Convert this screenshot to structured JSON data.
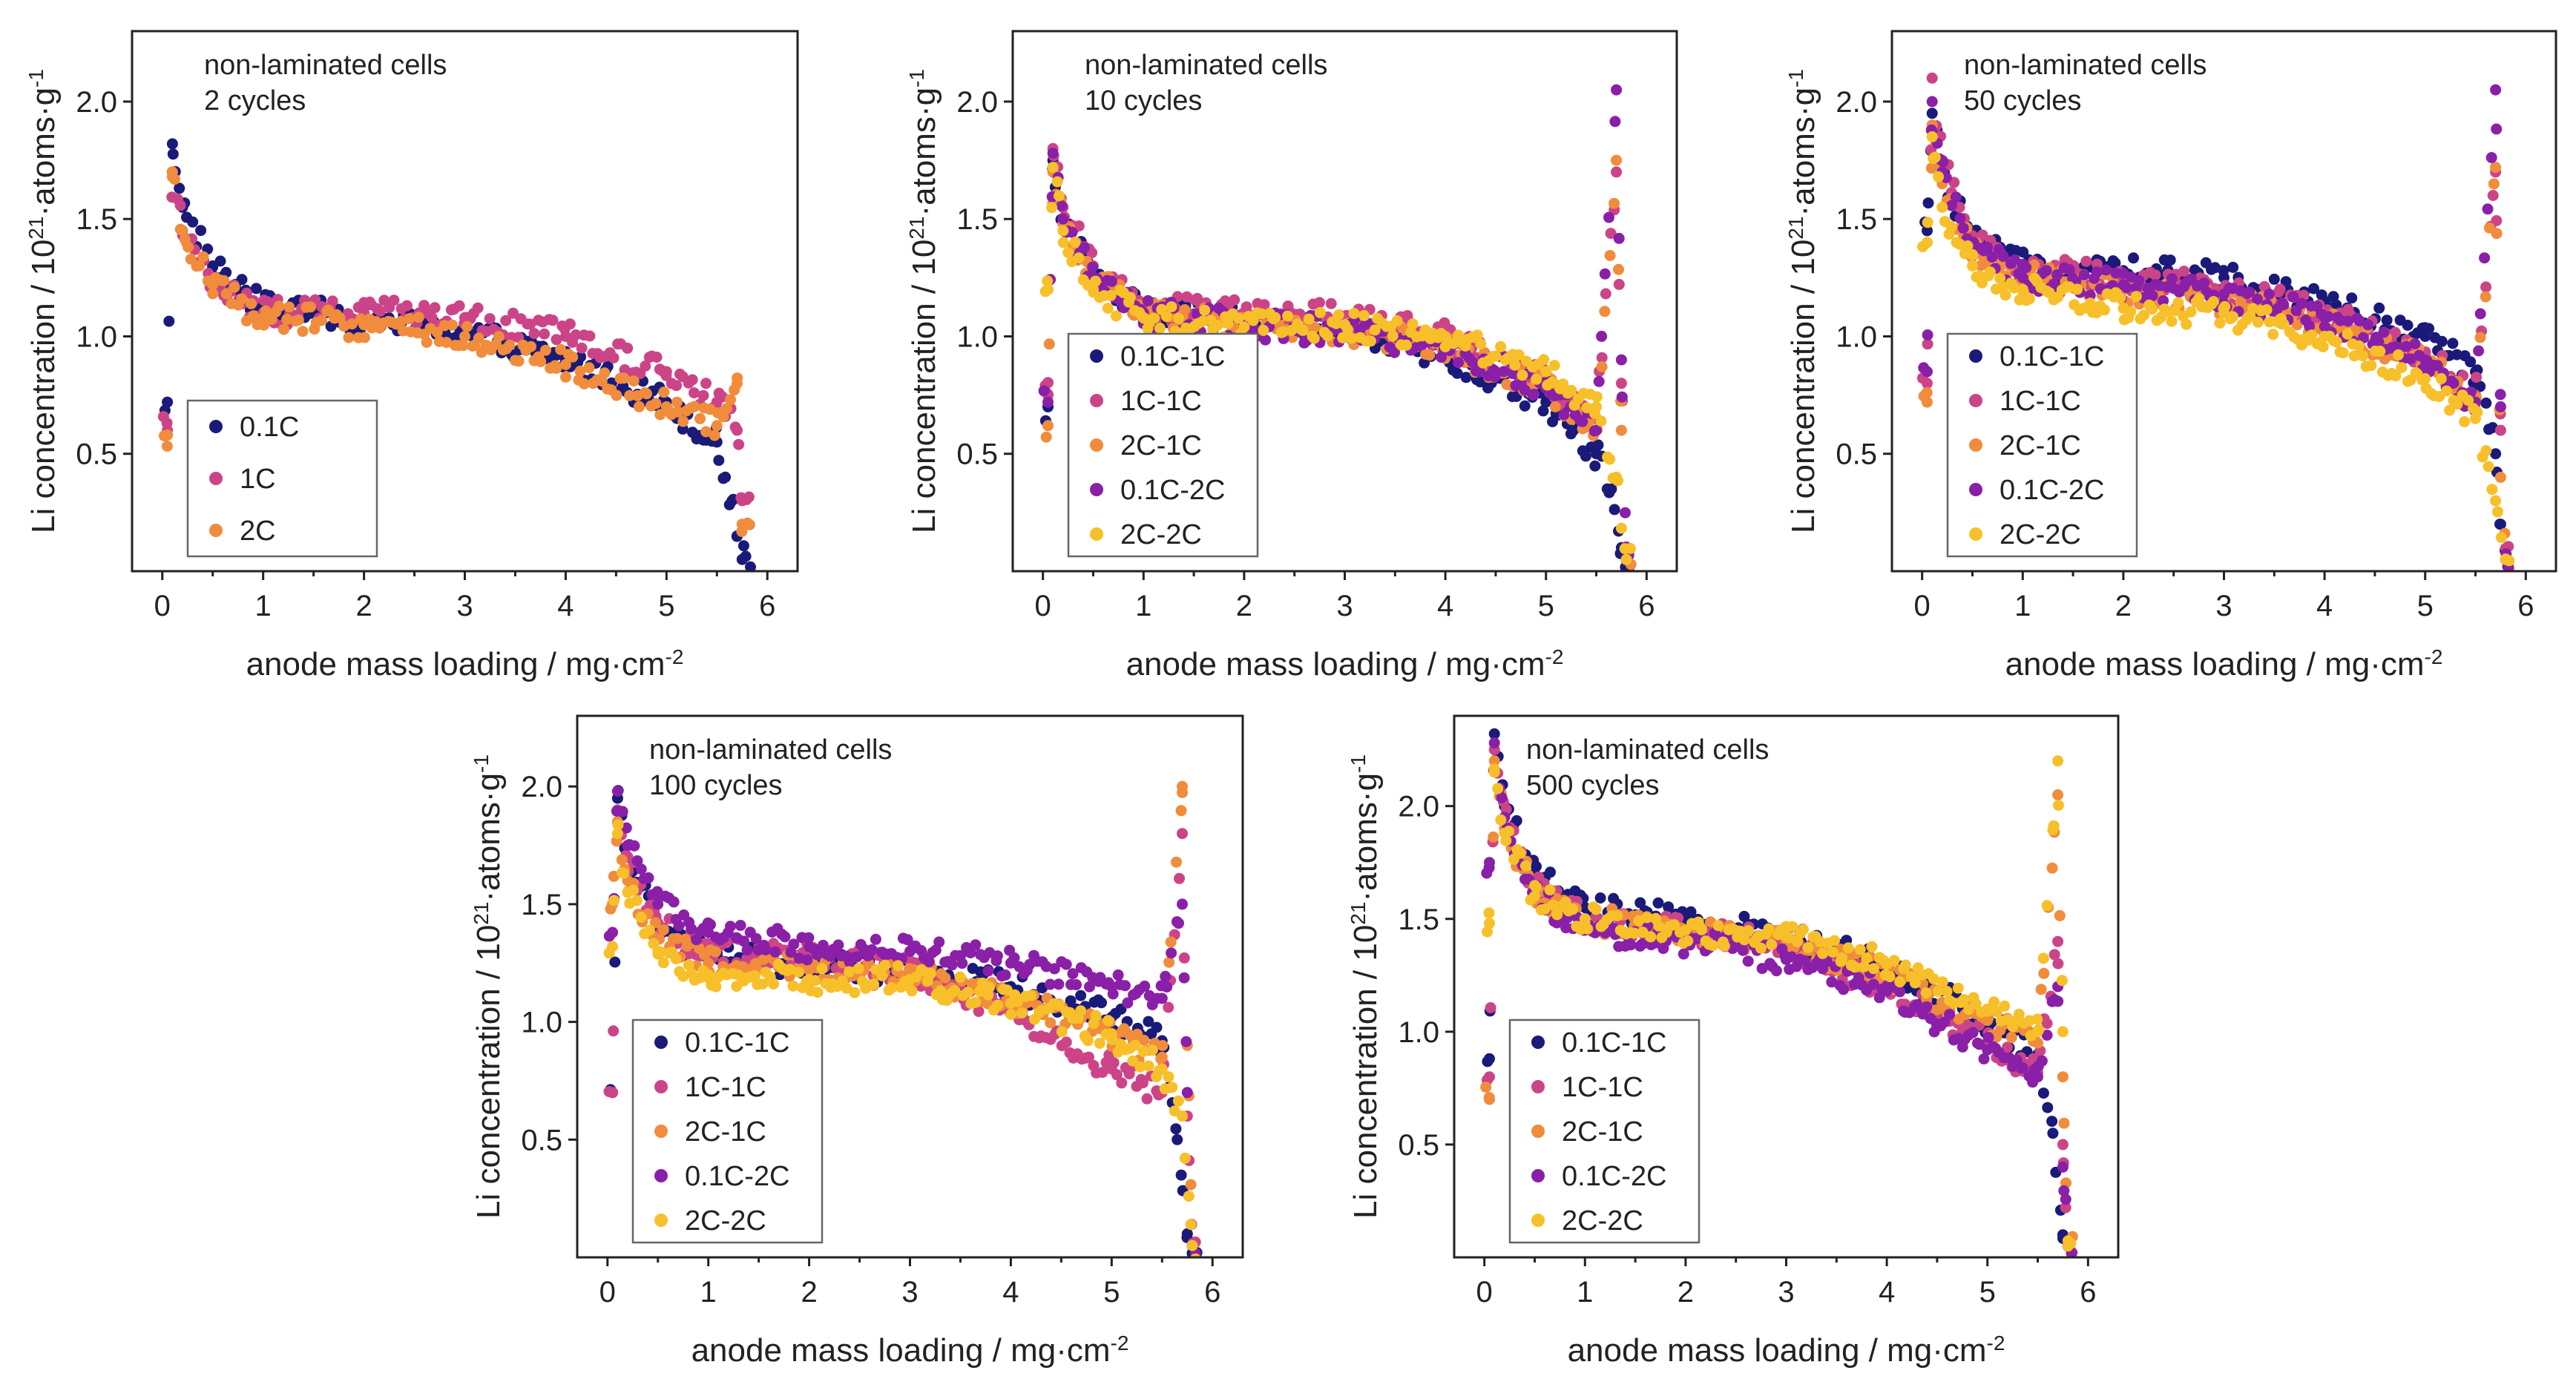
{
  "chart_data": [
    {
      "type": "scatter",
      "annotation": [
        "non-laminated cells",
        "2 cycles"
      ],
      "xlabel": "anode mass loading / mg·cm",
      "xlabel_sup": "-2",
      "ylabel": "Li concentration / 10",
      "ylabel_sup": "21",
      "ylabel_tail": "·atoms·g",
      "ylabel_sup2": "-1",
      "xlim": [
        -0.3,
        6.3
      ],
      "ylim": [
        0,
        2.3
      ],
      "xticks": [
        "0",
        "1",
        "2",
        "3",
        "4",
        "5",
        "6"
      ],
      "yticks": [
        "0.5",
        "1.0",
        "1.5",
        "2.0"
      ],
      "legend": [
        {
          "name": "0.1C",
          "color": "#1a1a7a"
        },
        {
          "name": "1C",
          "color": "#cc4488"
        },
        {
          "name": "2C",
          "color": "#f08c3c"
        }
      ],
      "series_profile": [
        {
          "name": "0.1C",
          "x": [
            0.05,
            0.1,
            0.2,
            0.5,
            1,
            2,
            3,
            4,
            5,
            5.5,
            5.65,
            5.7,
            5.75
          ],
          "y": [
            0.72,
            1.82,
            1.55,
            1.3,
            1.12,
            1.08,
            1.02,
            0.9,
            0.72,
            0.55,
            0.3,
            0.15,
            0.05
          ]
        },
        {
          "name": "1C",
          "x": [
            0.05,
            0.1,
            0.2,
            0.5,
            1,
            2,
            3,
            4,
            5,
            5.5,
            5.7,
            5.75
          ],
          "y": [
            0.6,
            1.7,
            1.45,
            1.25,
            1.1,
            1.1,
            1.08,
            1.0,
            0.85,
            0.72,
            0.6,
            0.3
          ]
        },
        {
          "name": "2C",
          "x": [
            0.05,
            0.1,
            0.2,
            0.5,
            1,
            2,
            3,
            4,
            5,
            5.5,
            5.7,
            5.75
          ],
          "y": [
            0.58,
            1.68,
            1.45,
            1.22,
            1.08,
            1.05,
            1.0,
            0.88,
            0.7,
            0.62,
            0.8,
            0.2
          ]
        }
      ]
    },
    {
      "type": "scatter",
      "annotation": [
        "non-laminated cells",
        "10 cycles"
      ],
      "xlabel": "anode mass loading / mg·cm",
      "xlabel_sup": "-2",
      "ylabel": "Li concentration / 10",
      "ylabel_sup": "21",
      "ylabel_tail": "·atoms·g",
      "ylabel_sup2": "-1",
      "xlim": [
        -0.3,
        6.3
      ],
      "ylim": [
        0,
        2.3
      ],
      "xticks": [
        "0",
        "1",
        "2",
        "3",
        "4",
        "5",
        "6"
      ],
      "yticks": [
        "0.5",
        "1.0",
        "1.5",
        "2.0"
      ],
      "legend": [
        {
          "name": "0.1C-1C",
          "color": "#1a1a7a"
        },
        {
          "name": "1C-1C",
          "color": "#cc4488"
        },
        {
          "name": "2C-1C",
          "color": "#f08c3c"
        },
        {
          "name": "0.1C-2C",
          "color": "#8a1fa8"
        },
        {
          "name": "2C-2C",
          "color": "#f7c02a"
        }
      ],
      "series_profile": [
        {
          "name": "0.1C-1C",
          "x": [
            0.05,
            0.1,
            0.2,
            0.5,
            1,
            2,
            3,
            4,
            5,
            5.5,
            5.65,
            5.75,
            5.8
          ],
          "y": [
            0.7,
            1.75,
            1.5,
            1.25,
            1.1,
            1.07,
            1.02,
            0.92,
            0.72,
            0.5,
            0.35,
            0.1,
            0.05
          ]
        },
        {
          "name": "1C-1C",
          "x": [
            0.05,
            0.1,
            0.2,
            0.5,
            1,
            2,
            3,
            4,
            5,
            5.5,
            5.7,
            5.75,
            5.8
          ],
          "y": [
            0.75,
            1.8,
            1.55,
            1.3,
            1.12,
            1.1,
            1.08,
            1.0,
            0.8,
            0.65,
            1.7,
            0.8,
            0.1
          ]
        },
        {
          "name": "2C-1C",
          "x": [
            0.05,
            0.1,
            0.2,
            0.5,
            1,
            2,
            3,
            4,
            5,
            5.5,
            5.7,
            5.75,
            5.8
          ],
          "y": [
            0.62,
            1.7,
            1.48,
            1.25,
            1.1,
            1.06,
            1.02,
            0.95,
            0.78,
            0.6,
            1.75,
            0.6,
            0.05
          ]
        },
        {
          "name": "0.1C-2C",
          "x": [
            0.05,
            0.1,
            0.2,
            0.5,
            1,
            2,
            3,
            4,
            5,
            5.5,
            5.7,
            5.75,
            5.8
          ],
          "y": [
            0.72,
            1.78,
            1.5,
            1.25,
            1.1,
            1.05,
            1.02,
            0.95,
            0.78,
            0.6,
            2.05,
            0.9,
            0.1
          ]
        },
        {
          "name": "2C-2C",
          "x": [
            0.05,
            0.1,
            0.2,
            0.5,
            1,
            2,
            3,
            4,
            5,
            5.5,
            5.7,
            5.8
          ],
          "y": [
            1.2,
            1.72,
            1.45,
            1.2,
            1.08,
            1.04,
            1.05,
            1.0,
            0.85,
            0.7,
            0.4,
            0.05
          ]
        }
      ]
    },
    {
      "type": "scatter",
      "annotation": [
        "non-laminated cells",
        "50 cycles"
      ],
      "xlabel": "anode mass loading / mg·cm",
      "xlabel_sup": "-2",
      "ylabel": "Li concentration / 10",
      "ylabel_sup": "21",
      "ylabel_tail": "·atoms·g",
      "ylabel_sup2": "-1",
      "xlim": [
        -0.3,
        6.3
      ],
      "ylim": [
        0,
        2.3
      ],
      "xticks": [
        "0",
        "1",
        "2",
        "3",
        "4",
        "5",
        "6"
      ],
      "yticks": [
        "0.5",
        "1.0",
        "1.5",
        "2.0"
      ],
      "legend": [
        {
          "name": "0.1C-1C",
          "color": "#1a1a7a"
        },
        {
          "name": "1C-1C",
          "color": "#cc4488"
        },
        {
          "name": "2C-1C",
          "color": "#f08c3c"
        },
        {
          "name": "0.1C-2C",
          "color": "#8a1fa8"
        },
        {
          "name": "2C-2C",
          "color": "#f7c02a"
        }
      ],
      "series_profile": [
        {
          "name": "0.1C-1C",
          "x": [
            0.05,
            0.1,
            0.2,
            0.5,
            1,
            2,
            3,
            4,
            5,
            5.5,
            5.7,
            5.75,
            5.8
          ],
          "y": [
            1.45,
            1.95,
            1.7,
            1.4,
            1.3,
            1.28,
            1.25,
            1.15,
            1.0,
            0.85,
            0.5,
            0.2,
            0.05
          ]
        },
        {
          "name": "1C-1C",
          "x": [
            0.05,
            0.1,
            0.2,
            0.5,
            1,
            2,
            3,
            4,
            5,
            5.5,
            5.7,
            5.75,
            5.8
          ],
          "y": [
            0.8,
            2.1,
            1.75,
            1.4,
            1.28,
            1.25,
            1.2,
            1.1,
            0.92,
            0.75,
            1.7,
            0.6,
            0.05
          ]
        },
        {
          "name": "2C-1C",
          "x": [
            0.05,
            0.1,
            0.2,
            0.5,
            1,
            2,
            3,
            4,
            5,
            5.5,
            5.7,
            5.75,
            5.8
          ],
          "y": [
            0.72,
            1.9,
            1.65,
            1.35,
            1.25,
            1.2,
            1.15,
            1.05,
            0.9,
            0.72,
            1.72,
            0.4,
            0.05
          ]
        },
        {
          "name": "0.1C-2C",
          "x": [
            0.05,
            0.1,
            0.2,
            0.5,
            1,
            2,
            3,
            4,
            5,
            5.5,
            5.7,
            5.75,
            5.8
          ],
          "y": [
            0.85,
            2.0,
            1.7,
            1.38,
            1.25,
            1.22,
            1.18,
            1.08,
            0.9,
            0.72,
            2.05,
            0.7,
            0.05
          ]
        },
        {
          "name": "2C-2C",
          "x": [
            0.05,
            0.1,
            0.2,
            0.5,
            1,
            2,
            3,
            4,
            5,
            5.5,
            5.7,
            5.8
          ],
          "y": [
            1.4,
            1.85,
            1.55,
            1.3,
            1.2,
            1.12,
            1.1,
            1.0,
            0.82,
            0.65,
            0.3,
            0.05
          ]
        }
      ]
    },
    {
      "type": "scatter",
      "annotation": [
        "non-laminated cells",
        "100 cycles"
      ],
      "xlabel": "anode mass loading / mg·cm",
      "xlabel_sup": "-2",
      "ylabel": "Li concentration / 10",
      "ylabel_sup": "21",
      "ylabel_tail": "·atoms·g",
      "ylabel_sup2": "-1",
      "xlim": [
        -0.3,
        6.3
      ],
      "ylim": [
        0,
        2.3
      ],
      "xticks": [
        "0",
        "1",
        "2",
        "3",
        "4",
        "5",
        "6"
      ],
      "yticks": [
        "0.5",
        "1.0",
        "1.5",
        "2.0"
      ],
      "legend": [
        {
          "name": "0.1C-1C",
          "color": "#1a1a7a"
        },
        {
          "name": "1C-1C",
          "color": "#cc4488"
        },
        {
          "name": "2C-1C",
          "color": "#f08c3c"
        },
        {
          "name": "0.1C-2C",
          "color": "#8a1fa8"
        },
        {
          "name": "2C-2C",
          "color": "#f7c02a"
        }
      ],
      "series_profile": [
        {
          "name": "0.1C-1C",
          "x": [
            0.05,
            0.1,
            0.2,
            0.5,
            1,
            2,
            3,
            4,
            5,
            5.5,
            5.65,
            5.75,
            5.8
          ],
          "y": [
            0.7,
            1.95,
            1.7,
            1.4,
            1.28,
            1.25,
            1.22,
            1.15,
            1.02,
            0.92,
            0.5,
            0.1,
            0.05
          ]
        },
        {
          "name": "1C-1C",
          "x": [
            0.05,
            0.1,
            0.2,
            0.5,
            1,
            2,
            3,
            4,
            5,
            5.5,
            5.7,
            5.75,
            5.8
          ],
          "y": [
            0.7,
            1.9,
            1.7,
            1.42,
            1.3,
            1.28,
            1.22,
            1.05,
            0.8,
            0.7,
            1.8,
            0.6,
            0.05
          ]
        },
        {
          "name": "2C-1C",
          "x": [
            0.05,
            0.1,
            0.2,
            0.5,
            1,
            2,
            3,
            4,
            5,
            5.5,
            5.7,
            5.75,
            5.8
          ],
          "y": [
            1.5,
            1.85,
            1.6,
            1.35,
            1.25,
            1.22,
            1.2,
            1.1,
            0.95,
            0.85,
            2.0,
            0.9,
            0.05
          ]
        },
        {
          "name": "0.1C-2C",
          "x": [
            0.05,
            0.1,
            0.2,
            0.5,
            1,
            2,
            3,
            4,
            5,
            5.5,
            5.7,
            5.75,
            5.8
          ],
          "y": [
            1.38,
            1.98,
            1.75,
            1.5,
            1.38,
            1.32,
            1.3,
            1.25,
            1.15,
            1.1,
            1.5,
            0.7,
            0.05
          ]
        },
        {
          "name": "2C-2C",
          "x": [
            0.05,
            0.1,
            0.2,
            0.5,
            1,
            2,
            3,
            4,
            5,
            5.5,
            5.7,
            5.8
          ],
          "y": [
            1.32,
            1.8,
            1.55,
            1.3,
            1.2,
            1.18,
            1.18,
            1.08,
            0.95,
            0.8,
            0.6,
            0.05
          ]
        }
      ]
    },
    {
      "type": "scatter",
      "annotation": [
        "non-laminated cells",
        "500 cycles"
      ],
      "xlabel": "anode mass loading / mg·cm",
      "xlabel_sup": "-2",
      "ylabel": "Li concentration / 10",
      "ylabel_sup": "21",
      "ylabel_tail": "·atoms·g",
      "ylabel_sup2": "-1",
      "xlim": [
        -0.3,
        6.3
      ],
      "ylim": [
        0,
        2.4
      ],
      "xticks": [
        "0",
        "1",
        "2",
        "3",
        "4",
        "5",
        "6"
      ],
      "yticks": [
        "0.5",
        "1.0",
        "1.5",
        "2.0"
      ],
      "legend": [
        {
          "name": "0.1C-1C",
          "color": "#1a1a7a"
        },
        {
          "name": "1C-1C",
          "color": "#cc4488"
        },
        {
          "name": "2C-1C",
          "color": "#f08c3c"
        },
        {
          "name": "0.1C-2C",
          "color": "#8a1fa8"
        },
        {
          "name": "2C-2C",
          "color": "#f7c02a"
        }
      ],
      "series_profile": [
        {
          "name": "0.1C-1C",
          "x": [
            0.05,
            0.1,
            0.2,
            0.5,
            1,
            2,
            3,
            4,
            5,
            5.5,
            5.65,
            5.75,
            5.8
          ],
          "y": [
            0.88,
            2.32,
            2.0,
            1.7,
            1.55,
            1.5,
            1.42,
            1.3,
            1.05,
            0.9,
            0.55,
            0.1,
            0.05
          ]
        },
        {
          "name": "1C-1C",
          "x": [
            0.05,
            0.1,
            0.2,
            0.5,
            1,
            2,
            3,
            4,
            5,
            5.5,
            5.7,
            5.75,
            5.8
          ],
          "y": [
            0.8,
            2.25,
            1.95,
            1.65,
            1.5,
            1.45,
            1.38,
            1.2,
            0.95,
            0.82,
            1.4,
            0.5,
            0.05
          ]
        },
        {
          "name": "2C-1C",
          "x": [
            0.05,
            0.1,
            0.2,
            0.5,
            1,
            2,
            3,
            4,
            5,
            5.5,
            5.7,
            5.75,
            5.8
          ],
          "y": [
            0.7,
            2.2,
            1.9,
            1.62,
            1.5,
            1.45,
            1.4,
            1.25,
            1.05,
            0.95,
            2.05,
            0.8,
            0.05
          ]
        },
        {
          "name": "0.1C-2C",
          "x": [
            0.05,
            0.1,
            0.2,
            0.5,
            1,
            2,
            3,
            4,
            5,
            5.5,
            5.7,
            5.75,
            5.8
          ],
          "y": [
            1.75,
            2.28,
            1.95,
            1.6,
            1.45,
            1.4,
            1.32,
            1.18,
            0.92,
            0.8,
            1.2,
            0.4,
            0.05
          ]
        },
        {
          "name": "2C-2C",
          "x": [
            0.05,
            0.1,
            0.2,
            0.5,
            1,
            2,
            3,
            4,
            5,
            5.5,
            5.7,
            5.75,
            5.8
          ],
          "y": [
            1.48,
            2.15,
            1.88,
            1.6,
            1.5,
            1.45,
            1.42,
            1.3,
            1.1,
            1.0,
            2.2,
            1.0,
            0.05
          ]
        }
      ]
    }
  ]
}
